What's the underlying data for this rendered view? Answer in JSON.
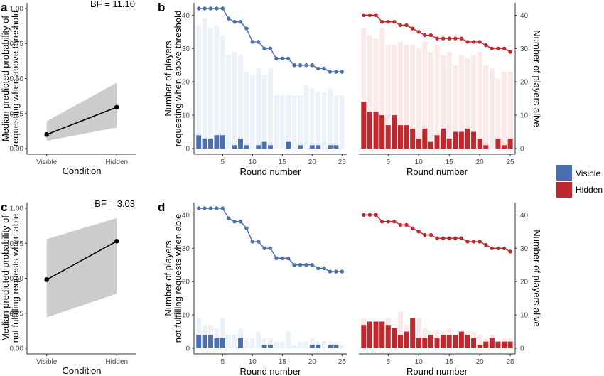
{
  "panel_labels": [
    "a",
    "b",
    "c",
    "d"
  ],
  "legend": {
    "entries": [
      {
        "label": "Visible",
        "color": "#4a6eae"
      },
      {
        "label": "Hidden",
        "color": "#c0282d"
      }
    ]
  },
  "colors": {
    "visible": "#4a6eae",
    "visible_light": "#edf2f8",
    "hidden": "#c0282d",
    "hidden_light": "#fbe9ea",
    "ribbon": "#cccccc"
  },
  "chart_data": [
    {
      "id": "a",
      "type": "line",
      "bf_label": "BF = 11.10",
      "xlabel": "Condition",
      "ylabel": "Median predicted probability of requesting when above threshold",
      "ylabel_lines": [
        "Median predicted probability of",
        "requesting when above threshold"
      ],
      "categories": [
        "Visible",
        "Hidden"
      ],
      "values": [
        0.1,
        0.295
      ],
      "ribbon_lower": [
        0.055,
        0.15
      ],
      "ribbon_upper": [
        0.195,
        0.47
      ],
      "ylim": [
        0,
        1
      ],
      "yticks": [
        "0.00",
        "0.25",
        "0.50",
        "0.75",
        "1.00"
      ]
    },
    {
      "id": "b",
      "type": "bar",
      "xlabel": "Round number",
      "ylabel": "Number of players requesting when above threshold",
      "ylabel_lines": [
        "Number of players",
        "requesting when above threshold"
      ],
      "ylabel_right": "Number of players alive",
      "x": [
        1,
        2,
        3,
        4,
        5,
        6,
        7,
        8,
        9,
        10,
        11,
        12,
        13,
        14,
        15,
        16,
        17,
        18,
        19,
        20,
        21,
        22,
        23,
        24,
        25
      ],
      "xticks": [
        "5",
        "10",
        "15",
        "20",
        "25"
      ],
      "ylim": [
        0,
        42
      ],
      "yticks": [
        "0",
        "10",
        "20",
        "30",
        "40"
      ],
      "series": [
        {
          "name": "Visible",
          "alive": [
            42,
            42,
            42,
            42,
            42,
            39,
            38,
            38,
            36,
            32,
            32,
            30,
            30,
            27,
            27,
            27,
            25,
            25,
            25,
            25,
            24,
            24,
            23,
            23,
            23
          ],
          "above_threshold": [
            37,
            39,
            36,
            37,
            34,
            28,
            29,
            28,
            23,
            22,
            24,
            22,
            24,
            16,
            16,
            16,
            16,
            16,
            19,
            18,
            17,
            17,
            18,
            16,
            16
          ],
          "requesting": [
            4,
            3,
            3,
            4,
            4,
            0,
            1,
            3,
            1,
            0,
            1,
            2,
            1,
            0,
            0,
            2,
            0,
            1,
            0,
            1,
            1,
            0,
            1,
            1,
            0
          ]
        },
        {
          "name": "Hidden",
          "alive": [
            40,
            40,
            40,
            38,
            38,
            38,
            37,
            37,
            36,
            35,
            34,
            34,
            33,
            33,
            33,
            33,
            33,
            32,
            32,
            32,
            31,
            30,
            30,
            30,
            29
          ],
          "above_threshold": [
            36,
            34,
            33,
            36,
            31,
            31,
            32,
            31,
            31,
            30,
            32,
            29,
            31,
            28,
            29,
            25,
            28,
            27,
            28,
            29,
            25,
            24,
            21,
            23,
            23
          ],
          "requesting": [
            14,
            11,
            11,
            10,
            7,
            10,
            7,
            7,
            6,
            3,
            6,
            2,
            4,
            6,
            3,
            5,
            5,
            6,
            5,
            3,
            1,
            0,
            3,
            1,
            3
          ]
        }
      ]
    },
    {
      "id": "c",
      "type": "line",
      "bf_label": "BF = 3.03",
      "xlabel": "Condition",
      "ylabel": "Median predicted probability of not fulfilling requests when able",
      "ylabel_lines": [
        "Median predicted probability of",
        "not fulfilling requests when able"
      ],
      "categories": [
        "Visible",
        "Hidden"
      ],
      "values": [
        0.49,
        0.765
      ],
      "ribbon_lower": [
        0.22,
        0.39
      ],
      "ribbon_upper": [
        0.78,
        0.93
      ],
      "ylim": [
        0,
        1
      ],
      "yticks": [
        "0.00",
        "0.25",
        "0.50",
        "0.75",
        "1.00"
      ]
    },
    {
      "id": "d",
      "type": "bar",
      "xlabel": "Round number",
      "ylabel": "Number of players not fulfilling requests when able",
      "ylabel_lines": [
        "Number of players",
        "not fulfilling requests when able"
      ],
      "ylabel_right": "Number of players alive",
      "x": [
        1,
        2,
        3,
        4,
        5,
        6,
        7,
        8,
        9,
        10,
        11,
        12,
        13,
        14,
        15,
        16,
        17,
        18,
        19,
        20,
        21,
        22,
        23,
        24,
        25
      ],
      "xticks": [
        "5",
        "10",
        "15",
        "20",
        "25"
      ],
      "ylim": [
        0,
        42
      ],
      "yticks": [
        "0",
        "10",
        "20",
        "30",
        "40"
      ],
      "series": [
        {
          "name": "Visible",
          "alive": [
            42,
            42,
            42,
            42,
            42,
            39,
            38,
            38,
            36,
            32,
            32,
            30,
            30,
            27,
            27,
            27,
            25,
            25,
            25,
            25,
            24,
            24,
            23,
            23,
            23
          ],
          "able": [
            9,
            7,
            7,
            6,
            9,
            4,
            4,
            6,
            3,
            3,
            5,
            3,
            3,
            2,
            2,
            5,
            1,
            2,
            2,
            3,
            2,
            2,
            2,
            2,
            1
          ],
          "not_fulfilling": [
            4,
            4,
            4,
            3,
            3,
            0,
            0,
            3,
            0,
            0,
            0,
            1,
            1,
            0,
            0,
            0,
            0,
            0,
            0,
            1,
            1,
            0,
            1,
            1,
            0
          ]
        },
        {
          "name": "Hidden",
          "alive": [
            40,
            40,
            40,
            38,
            38,
            38,
            37,
            37,
            36,
            35,
            34,
            34,
            33,
            33,
            33,
            33,
            33,
            32,
            32,
            32,
            31,
            30,
            30,
            30,
            29
          ],
          "able": [
            9,
            8,
            7,
            7,
            9,
            6,
            11,
            7,
            7,
            9,
            6,
            5,
            5,
            5,
            6,
            4,
            4,
            5,
            5,
            4,
            3,
            4,
            2,
            3,
            3
          ],
          "not_fulfilling": [
            7,
            8,
            8,
            8,
            7,
            6,
            4,
            5,
            9,
            3,
            3,
            4,
            3,
            4,
            4,
            4,
            5,
            4,
            3,
            1,
            2,
            3,
            2,
            2,
            2
          ]
        }
      ]
    }
  ]
}
